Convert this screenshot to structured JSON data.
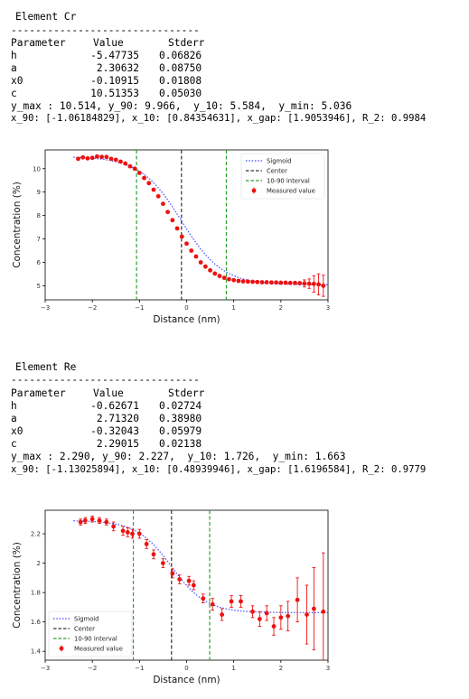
{
  "sections": [
    {
      "element_title": "Element Cr",
      "separator": "-------------------------------",
      "headers": [
        "Parameter",
        "Value",
        "Stderr"
      ],
      "rows": [
        [
          "h",
          "-5.47735",
          "0.06826"
        ],
        [
          "a",
          "2.30632",
          "0.08750"
        ],
        [
          "x0",
          "-0.10915",
          "0.01808"
        ],
        [
          "c",
          "10.51353",
          "0.05030"
        ]
      ],
      "summary1": "y_max : 10.514, y_90: 9.966,  y_10: 5.584,  y_min: 5.036",
      "summary2": "x_90: [-1.06184829], x_10: [0.84354631], x_gap: [1.9053946], R_2: 0.9984"
    },
    {
      "element_title": "Element Re",
      "separator": "-------------------------------",
      "headers": [
        "Parameter",
        "Value",
        "Stderr"
      ],
      "rows": [
        [
          "h",
          "-0.62671",
          "0.02724"
        ],
        [
          "a",
          "2.71320",
          "0.38980"
        ],
        [
          "x0",
          "-0.32043",
          "0.05979"
        ],
        [
          "c",
          "2.29015",
          "0.02138"
        ]
      ],
      "summary1": "y_max : 2.290, y_90: 2.227,  y_10: 1.726,  y_min: 1.663",
      "summary2": "x_90: [-1.13025894], x_10: [0.48939946], x_gap: [1.6196584], R_2: 0.9779"
    }
  ],
  "chart_data": [
    {
      "type": "scatter",
      "title": "",
      "xlabel": "Distance (nm)",
      "ylabel": "Concentration (%)",
      "xlim": [
        -3,
        3
      ],
      "ylim": [
        4.4,
        10.8
      ],
      "xticks": [
        -3,
        -2,
        -1,
        0,
        1,
        2,
        3
      ],
      "yticks": [
        5,
        6,
        7,
        8,
        9,
        10
      ],
      "legend_position": "top-right",
      "legend": [
        "Sigmoid",
        "Center",
        "10-90 interval",
        "Measured value"
      ],
      "sigmoid": {
        "h": -5.47735,
        "a": 2.30632,
        "x0": -0.10915,
        "c": 10.51353
      },
      "center": -0.10915,
      "interval": [
        -1.06184829,
        0.84354631
      ],
      "colors": {
        "sigmoid": "#3b4cff",
        "center": "#333333",
        "interval": "#2ca02c",
        "measured": "#ee1111"
      },
      "measured": {
        "x": [
          -2.3,
          -2.2,
          -2.1,
          -2.0,
          -1.9,
          -1.8,
          -1.7,
          -1.6,
          -1.5,
          -1.4,
          -1.3,
          -1.2,
          -1.1,
          -1.0,
          -0.9,
          -0.8,
          -0.7,
          -0.6,
          -0.5,
          -0.4,
          -0.3,
          -0.2,
          -0.1,
          0.0,
          0.1,
          0.2,
          0.3,
          0.4,
          0.5,
          0.6,
          0.7,
          0.8,
          0.9,
          1.0,
          1.1,
          1.2,
          1.3,
          1.4,
          1.5,
          1.6,
          1.7,
          1.8,
          1.9,
          2.0,
          2.1,
          2.2,
          2.3,
          2.4,
          2.5,
          2.6,
          2.7,
          2.8,
          2.9
        ],
        "y": [
          10.42,
          10.48,
          10.44,
          10.46,
          10.52,
          10.5,
          10.5,
          10.42,
          10.38,
          10.3,
          10.22,
          10.1,
          10.0,
          9.82,
          9.6,
          9.38,
          9.1,
          8.82,
          8.5,
          8.15,
          7.8,
          7.45,
          7.1,
          6.8,
          6.5,
          6.25,
          6.0,
          5.82,
          5.66,
          5.52,
          5.42,
          5.34,
          5.28,
          5.24,
          5.21,
          5.19,
          5.18,
          5.17,
          5.16,
          5.15,
          5.15,
          5.14,
          5.14,
          5.13,
          5.13,
          5.12,
          5.12,
          5.11,
          5.1,
          5.09,
          5.08,
          5.06,
          5.0
        ],
        "err": [
          0.05,
          0.05,
          0.05,
          0.05,
          0.05,
          0.05,
          0.05,
          0.05,
          0.05,
          0.05,
          0.05,
          0.05,
          0.05,
          0.05,
          0.05,
          0.05,
          0.05,
          0.05,
          0.05,
          0.05,
          0.05,
          0.05,
          0.05,
          0.05,
          0.05,
          0.05,
          0.05,
          0.05,
          0.05,
          0.05,
          0.05,
          0.05,
          0.05,
          0.05,
          0.05,
          0.05,
          0.05,
          0.05,
          0.05,
          0.05,
          0.05,
          0.05,
          0.05,
          0.05,
          0.05,
          0.05,
          0.05,
          0.05,
          0.15,
          0.2,
          0.35,
          0.45,
          0.45
        ]
      }
    },
    {
      "type": "scatter",
      "title": "",
      "xlabel": "Distance (nm)",
      "ylabel": "Concentration (%)",
      "xlim": [
        -3,
        3
      ],
      "ylim": [
        1.34,
        2.36
      ],
      "xticks": [
        -3,
        -2,
        -1,
        0,
        1,
        2,
        3
      ],
      "yticks": [
        1.4,
        1.6,
        1.8,
        2.0,
        2.2
      ],
      "legend_position": "bottom-left",
      "legend": [
        "Sigmoid",
        "Center",
        "10-90 interval",
        "Measured value"
      ],
      "sigmoid": {
        "h": -0.62671,
        "a": 2.7132,
        "x0": -0.32043,
        "c": 2.29015
      },
      "center": -0.32043,
      "interval": [
        -1.13025894,
        0.48939946
      ],
      "colors": {
        "sigmoid": "#3b4cff",
        "center": "#333333",
        "interval": "#2ca02c",
        "measured": "#ee1111"
      },
      "measured": {
        "x": [
          -2.25,
          -2.15,
          -2.0,
          -1.85,
          -1.7,
          -1.55,
          -1.35,
          -1.25,
          -1.15,
          -1.0,
          -0.85,
          -0.7,
          -0.5,
          -0.3,
          -0.15,
          0.05,
          0.15,
          0.35,
          0.55,
          0.75,
          0.95,
          1.15,
          1.4,
          1.55,
          1.7,
          1.85,
          2.0,
          2.15,
          2.35,
          2.55,
          2.7,
          2.9
        ],
        "y": [
          2.28,
          2.29,
          2.3,
          2.29,
          2.28,
          2.25,
          2.22,
          2.21,
          2.2,
          2.2,
          2.13,
          2.06,
          2.0,
          1.93,
          1.89,
          1.88,
          1.85,
          1.76,
          1.72,
          1.65,
          1.74,
          1.74,
          1.67,
          1.62,
          1.66,
          1.57,
          1.63,
          1.64,
          1.75,
          1.65,
          1.69,
          1.67
        ],
        "err": [
          0.02,
          0.02,
          0.02,
          0.02,
          0.02,
          0.03,
          0.03,
          0.03,
          0.03,
          0.03,
          0.03,
          0.03,
          0.03,
          0.03,
          0.03,
          0.03,
          0.03,
          0.03,
          0.04,
          0.04,
          0.04,
          0.04,
          0.04,
          0.05,
          0.05,
          0.06,
          0.08,
          0.1,
          0.15,
          0.2,
          0.28,
          0.4
        ]
      }
    }
  ]
}
